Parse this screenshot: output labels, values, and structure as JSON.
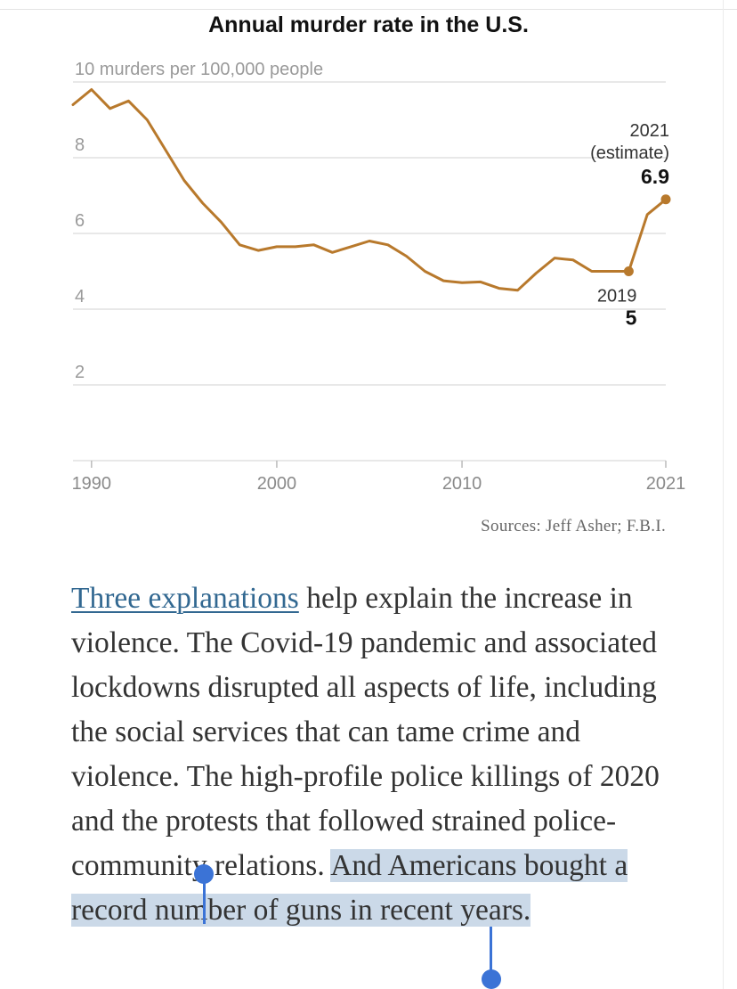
{
  "chart_data": {
    "type": "line",
    "title": "Annual murder rate in the U.S.",
    "ylabel": "murders per 100,000 people",
    "top_tick_label": "10 murders per 100,000 people",
    "xlim": [
      1990,
      2021
    ],
    "ylim": [
      0,
      10
    ],
    "y_ticks": [
      2,
      4,
      6,
      8,
      10
    ],
    "x_ticks": [
      1990,
      2000,
      2010,
      2021
    ],
    "series": [
      {
        "name": "Murder rate",
        "color": "#b8792c",
        "x": [
          1989,
          1990,
          1991,
          1992,
          1993,
          1994,
          1995,
          1996,
          1997,
          1998,
          1999,
          2000,
          2001,
          2002,
          2003,
          2004,
          2005,
          2006,
          2007,
          2008,
          2009,
          2010,
          2011,
          2012,
          2013,
          2014,
          2015,
          2016,
          2017,
          2018,
          2019,
          2020,
          2021
        ],
        "y": [
          9.4,
          9.8,
          9.3,
          9.5,
          9.0,
          8.2,
          7.4,
          6.8,
          6.3,
          5.7,
          5.55,
          5.65,
          5.65,
          5.7,
          5.5,
          5.65,
          5.8,
          5.7,
          5.4,
          5.0,
          4.75,
          4.7,
          4.72,
          4.55,
          4.5,
          4.95,
          5.35,
          5.3,
          5.0,
          5.0,
          5.0,
          6.5,
          6.9
        ]
      }
    ],
    "annotations": [
      {
        "x": 2019,
        "y": 5,
        "label": "2019",
        "value": "5"
      },
      {
        "x": 2021,
        "y": 6.9,
        "label": "2021",
        "sublabel": "(estimate)",
        "value": "6.9"
      }
    ],
    "source": "Sources: Jeff Asher; F.B.I."
  },
  "article": {
    "link_text": "Three explanations",
    "text_plain": " help explain the increase in violence. The Covid-19 pandemic and associated lockdowns disrupted all aspects of life, including the social services that can tame crime and violence. The high-profile police killings of 2020 and the protests that followed strained police-community relations. ",
    "text_selected": "And Americans bought a record number of guns in recent years."
  },
  "colors": {
    "line": "#b8792c",
    "link": "#326891",
    "selection": "#cbd9e8",
    "handle": "#3b73d6",
    "grid": "#e0e0e0"
  }
}
